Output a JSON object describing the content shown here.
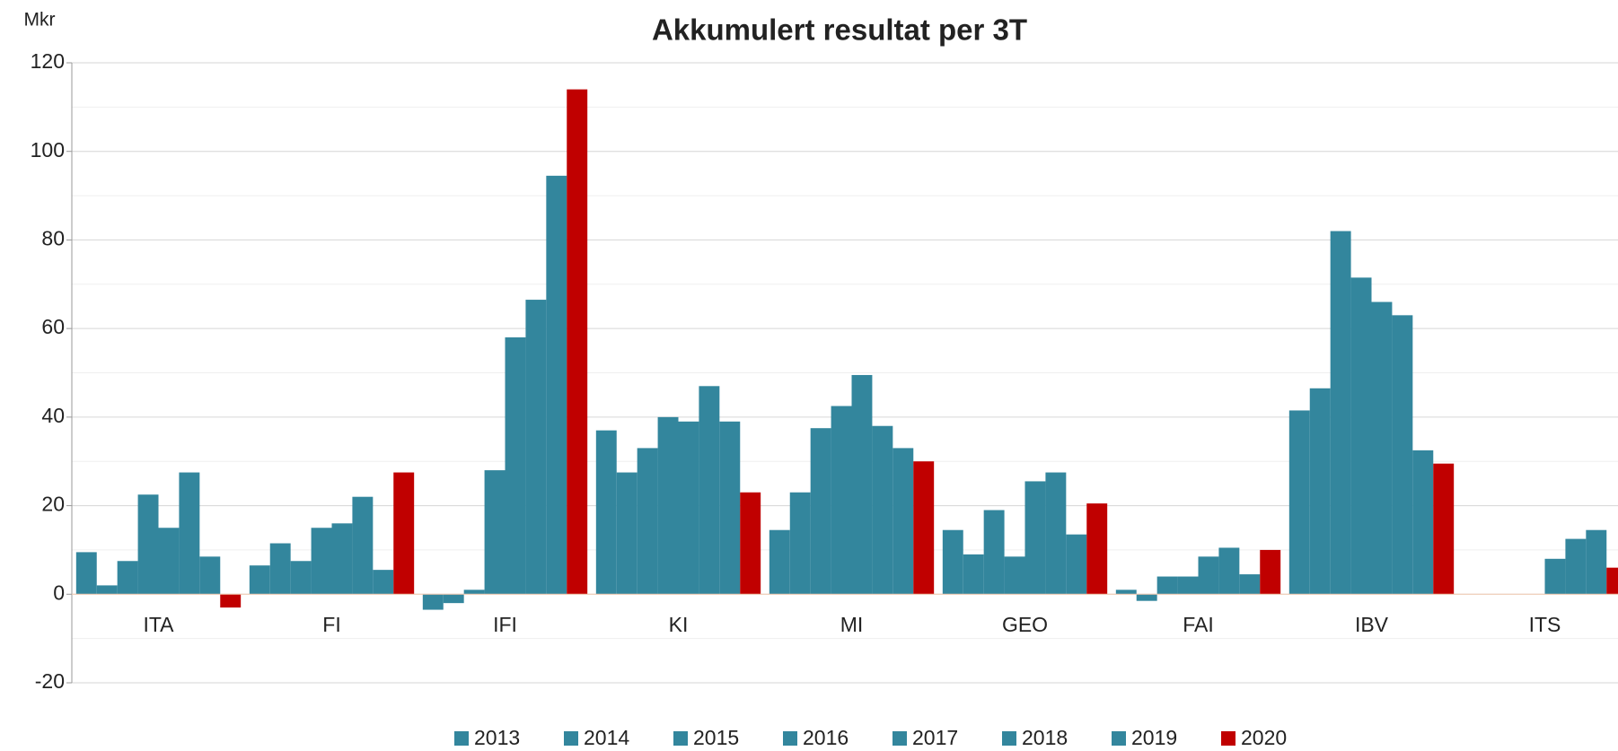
{
  "chart_data": {
    "type": "bar",
    "title": "Akkumulert resultat per 3T",
    "y_axis_label": "Mkr",
    "categories": [
      "ITA",
      "FI",
      "IFI",
      "KI",
      "MI",
      "GEO",
      "FAI",
      "IBV",
      "ITS"
    ],
    "series": [
      {
        "name": "2013",
        "color": "#33869d",
        "values": [
          9.5,
          6.5,
          -3.5,
          37,
          14.5,
          14.5,
          1,
          41.5,
          null
        ]
      },
      {
        "name": "2014",
        "color": "#33869d",
        "values": [
          2,
          11.5,
          -2,
          27.5,
          23,
          9,
          -1.5,
          46.5,
          null
        ]
      },
      {
        "name": "2015",
        "color": "#33869d",
        "values": [
          7.5,
          7.5,
          1,
          33,
          37.5,
          19,
          4,
          82,
          null
        ]
      },
      {
        "name": "2016",
        "color": "#33869d",
        "values": [
          22.5,
          15,
          28,
          40,
          42.5,
          8.5,
          4,
          71.5,
          null
        ]
      },
      {
        "name": "2017",
        "color": "#33869d",
        "values": [
          15,
          16,
          58,
          39,
          49.5,
          25.5,
          8.5,
          66,
          8
        ]
      },
      {
        "name": "2018",
        "color": "#33869d",
        "values": [
          27.5,
          22,
          66.5,
          47,
          38,
          27.5,
          10.5,
          63,
          12.5
        ]
      },
      {
        "name": "2019",
        "color": "#33869d",
        "values": [
          8.5,
          5.5,
          94.5,
          39,
          33,
          13.5,
          4.5,
          32.5,
          14.5
        ]
      },
      {
        "name": "2020",
        "color": "#c00000",
        "values": [
          -3,
          27.5,
          114,
          23,
          30,
          20.5,
          10,
          29.5,
          6
        ]
      }
    ],
    "ylim": [
      -20,
      120
    ],
    "yticks": [
      -20,
      0,
      20,
      40,
      60,
      80,
      100,
      120
    ],
    "minor_yticks": [
      -10,
      10,
      30,
      50,
      70,
      90,
      110
    ],
    "grid": true,
    "legend": "bottom"
  }
}
